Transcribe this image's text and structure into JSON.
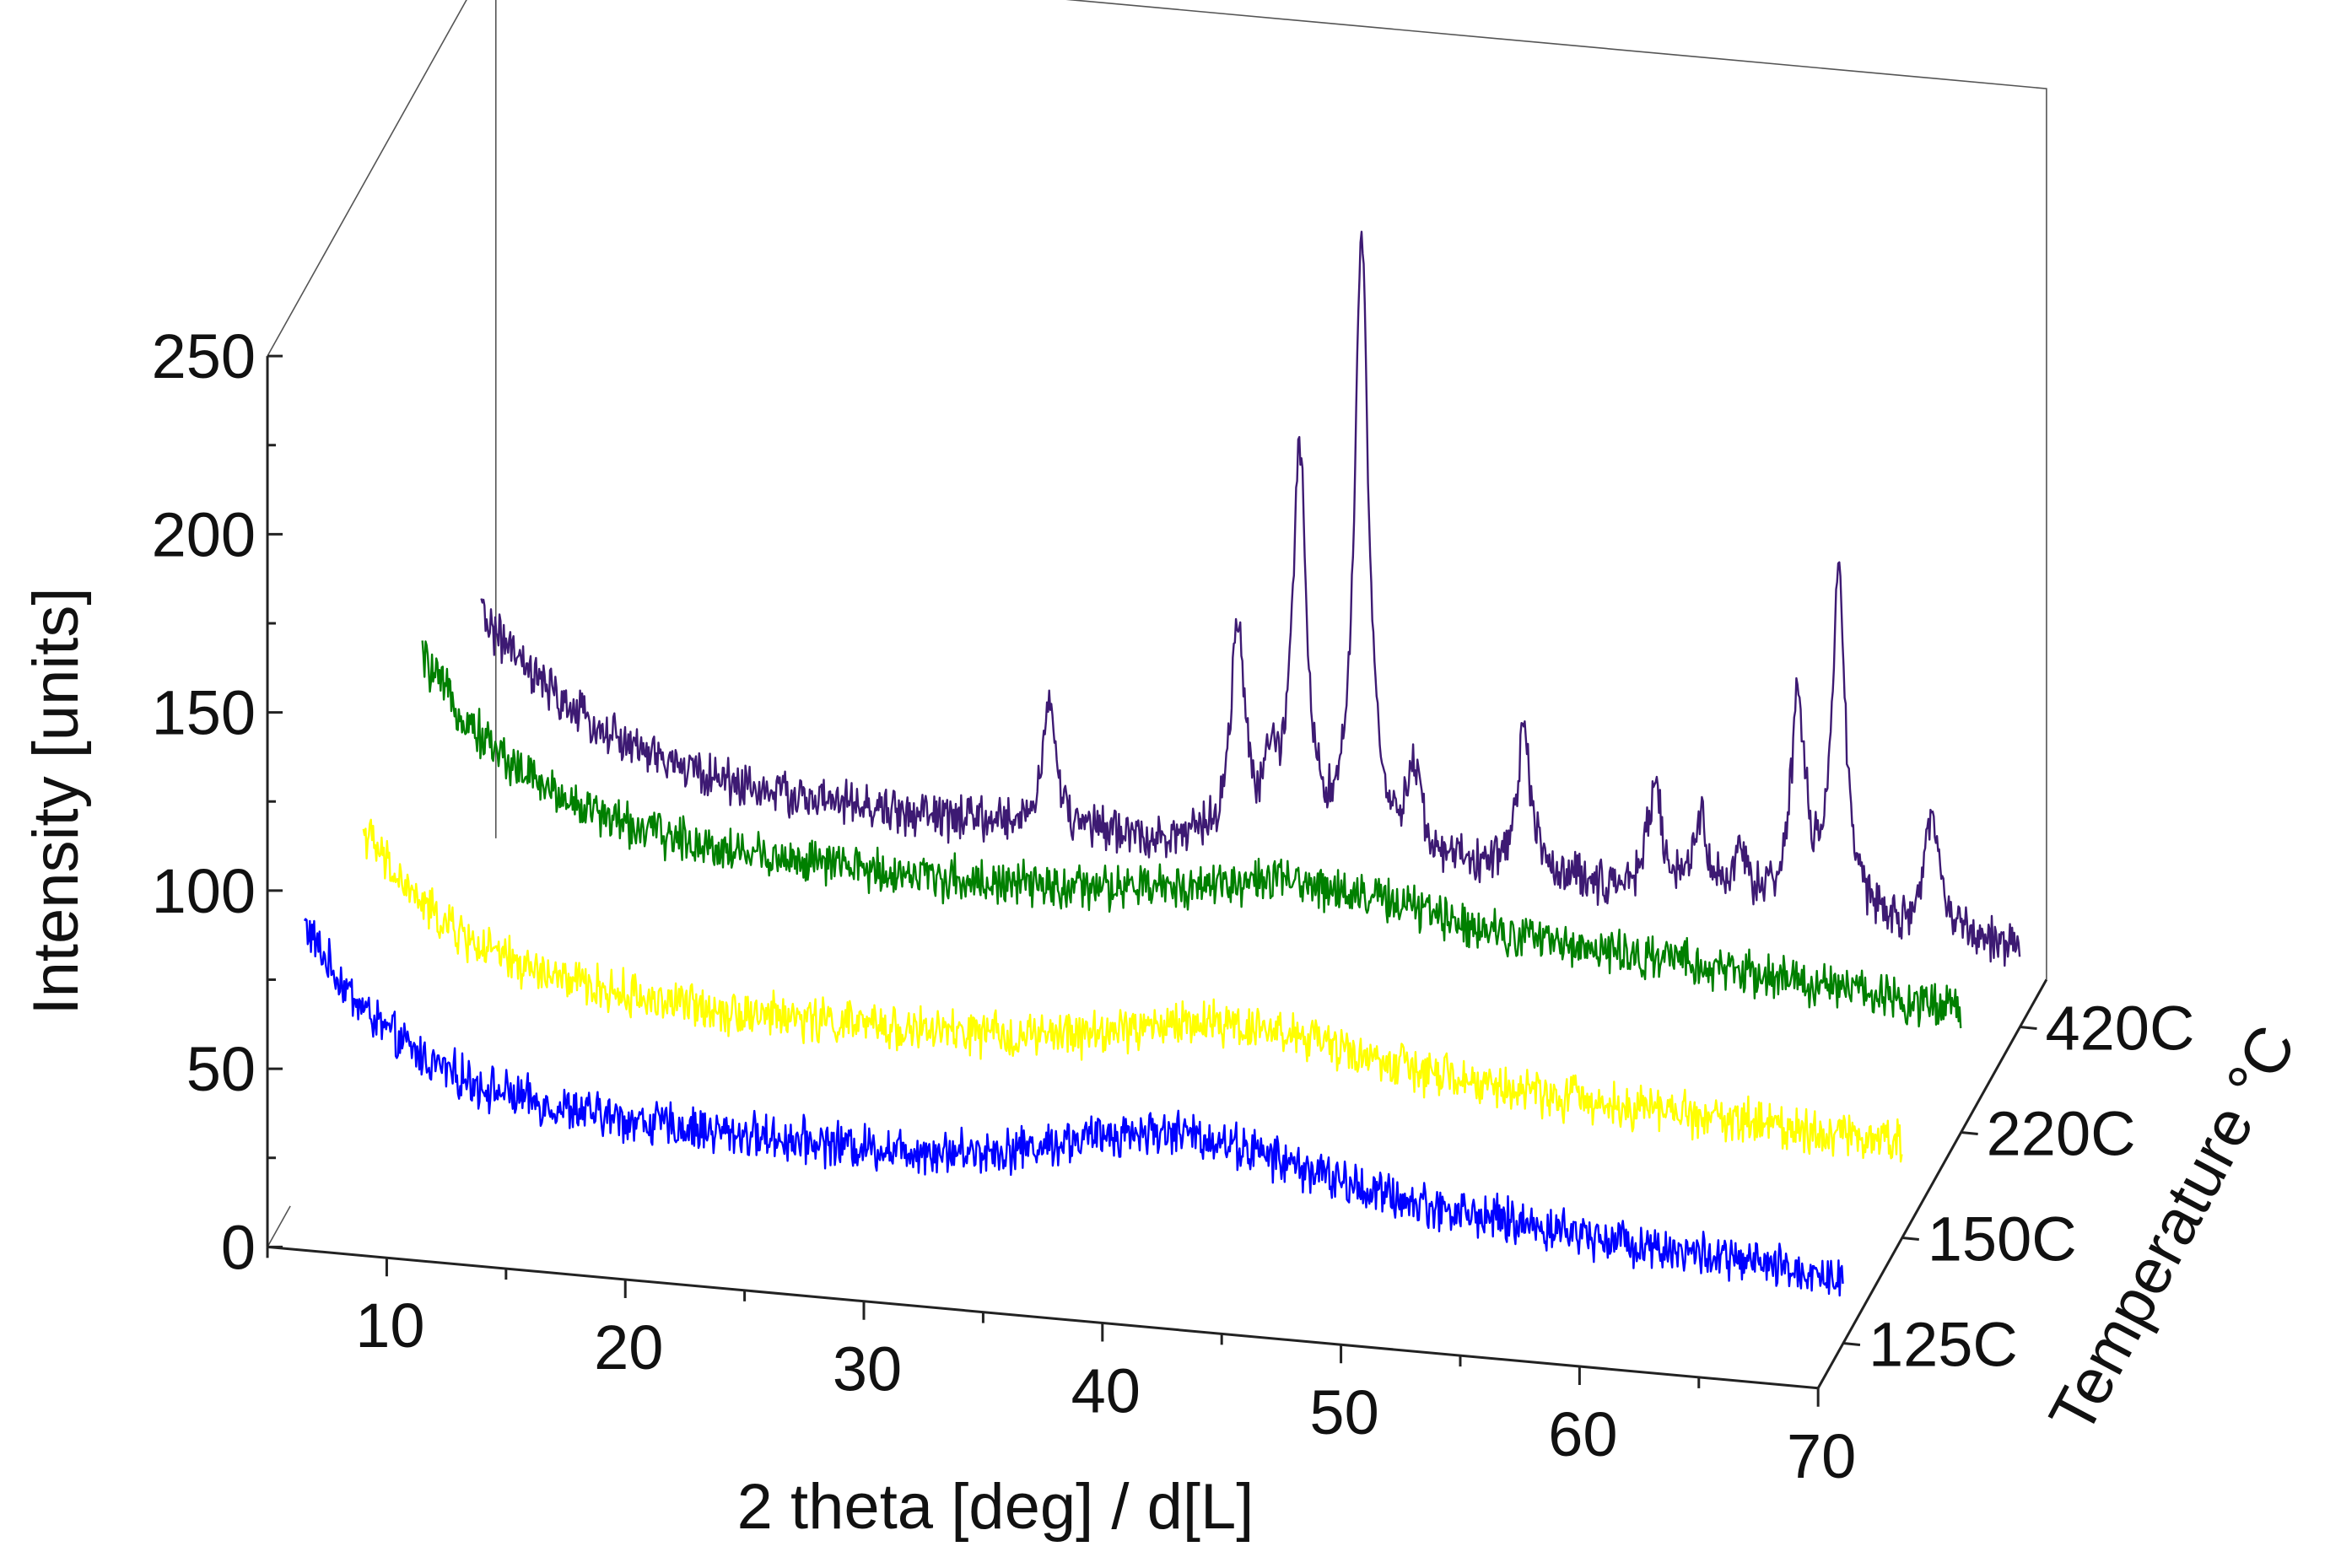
{
  "chart_data": {
    "type": "line",
    "subtype": "3d-waterfall",
    "title": "",
    "xlabel": "2 theta [deg] / d[L]",
    "ylabel": "Intensity [units]",
    "zlabel": "Temperature °C",
    "xlim": [
      5,
      70
    ],
    "ylim": [
      0,
      250
    ],
    "x_ticks": [
      "10",
      "20",
      "30",
      "40",
      "50",
      "60",
      "70"
    ],
    "y_ticks": [
      "0",
      "50",
      "100",
      "150",
      "200",
      "250"
    ],
    "z_ticks": [
      "125C",
      "150C",
      "220C",
      "420C"
    ],
    "grid": false,
    "series": [
      {
        "name": "125C",
        "color": "#0000ff",
        "baseline": {
          "start": 85,
          "decay": 55,
          "rate": 0.25,
          "hump_center": 42,
          "hump_height": 12,
          "slope_end": -12
        },
        "noise": 5,
        "peaks": []
      },
      {
        "name": "150C",
        "color": "#ffff00",
        "baseline": {
          "start": 88,
          "decay": 48,
          "rate": 0.25,
          "hump_center": 42,
          "hump_height": 10,
          "slope_end": -6
        },
        "noise": 5,
        "peaks": []
      },
      {
        "name": "220C",
        "color": "#008000",
        "baseline": {
          "start": 100,
          "decay": 55,
          "rate": 0.22,
          "hump_center": 42,
          "hump_height": 8,
          "slope_end": -10
        },
        "noise": 5,
        "peaks": []
      },
      {
        "name": "420C",
        "color": "#3d1a73",
        "baseline": {
          "start": 85,
          "decay": 52,
          "rate": 0.2,
          "hump_center": 42,
          "hump_height": 0,
          "slope_end": -8
        },
        "noise": 5,
        "peaks": [
          {
            "x": 29.3,
            "height": 35
          },
          {
            "x": 37.2,
            "height": 60
          },
          {
            "x": 38.6,
            "height": 20
          },
          {
            "x": 39.8,
            "height": 110
          },
          {
            "x": 42.4,
            "height": 170
          },
          {
            "x": 44.6,
            "height": 25
          },
          {
            "x": 49.2,
            "height": 40
          },
          {
            "x": 54.7,
            "height": 30
          },
          {
            "x": 56.6,
            "height": 22
          },
          {
            "x": 58.3,
            "height": 15
          },
          {
            "x": 60.7,
            "height": 60
          },
          {
            "x": 62.4,
            "height": 95
          },
          {
            "x": 66.3,
            "height": 35
          }
        ]
      }
    ]
  }
}
